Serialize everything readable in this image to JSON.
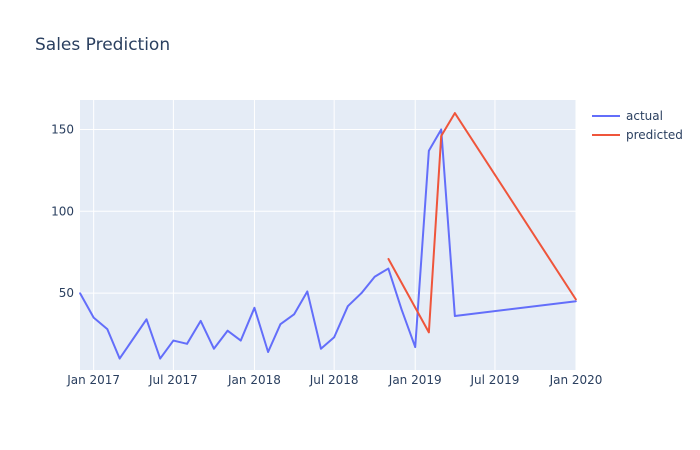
{
  "chart_data": {
    "type": "line",
    "title": "Sales Prediction",
    "xlabel": "",
    "ylabel": "",
    "x_axis_type": "date",
    "xlim": [
      "2016-12-01",
      "2020-01-01"
    ],
    "ylim": [
      3,
      168
    ],
    "x_ticks": [
      {
        "date": "2017-01-01",
        "label": "Jan 2017"
      },
      {
        "date": "2017-07-01",
        "label": "Jul 2017"
      },
      {
        "date": "2018-01-01",
        "label": "Jan 2018"
      },
      {
        "date": "2018-07-01",
        "label": "Jul 2018"
      },
      {
        "date": "2019-01-01",
        "label": "Jan 2019"
      },
      {
        "date": "2019-07-01",
        "label": "Jul 2019"
      },
      {
        "date": "2020-01-01",
        "label": "Jan 2020"
      }
    ],
    "y_ticks": [
      {
        "value": 50,
        "label": "50"
      },
      {
        "value": 100,
        "label": "100"
      },
      {
        "value": 150,
        "label": "150"
      }
    ],
    "grid": true,
    "legend_position": "top-right",
    "series": [
      {
        "name": "actual",
        "color": "#636efa",
        "x": [
          "2016-12-01",
          "2017-01-01",
          "2017-02-01",
          "2017-03-01",
          "2017-05-01",
          "2017-06-01",
          "2017-07-01",
          "2017-08-01",
          "2017-09-01",
          "2017-10-01",
          "2017-11-01",
          "2017-12-01",
          "2018-01-01",
          "2018-02-01",
          "2018-03-01",
          "2018-04-01",
          "2018-05-01",
          "2018-06-01",
          "2018-07-01",
          "2018-08-01",
          "2018-09-01",
          "2018-10-01",
          "2018-11-01",
          "2018-12-01",
          "2019-01-01",
          "2019-02-01",
          "2019-03-01",
          "2019-04-01",
          "2020-01-01"
        ],
        "y": [
          50,
          35,
          28,
          10,
          34,
          10,
          21,
          19,
          33,
          16,
          27,
          21,
          41,
          14,
          31,
          37,
          51,
          16,
          23,
          42,
          50,
          60,
          65,
          40,
          17,
          137,
          150,
          36,
          45
        ]
      },
      {
        "name": "predicted",
        "color": "#ef553b",
        "x": [
          "2018-11-01",
          "2019-02-01",
          "2019-03-01",
          "2019-04-01",
          "2020-01-01"
        ],
        "y": [
          71,
          26,
          146,
          160,
          46
        ]
      }
    ]
  }
}
